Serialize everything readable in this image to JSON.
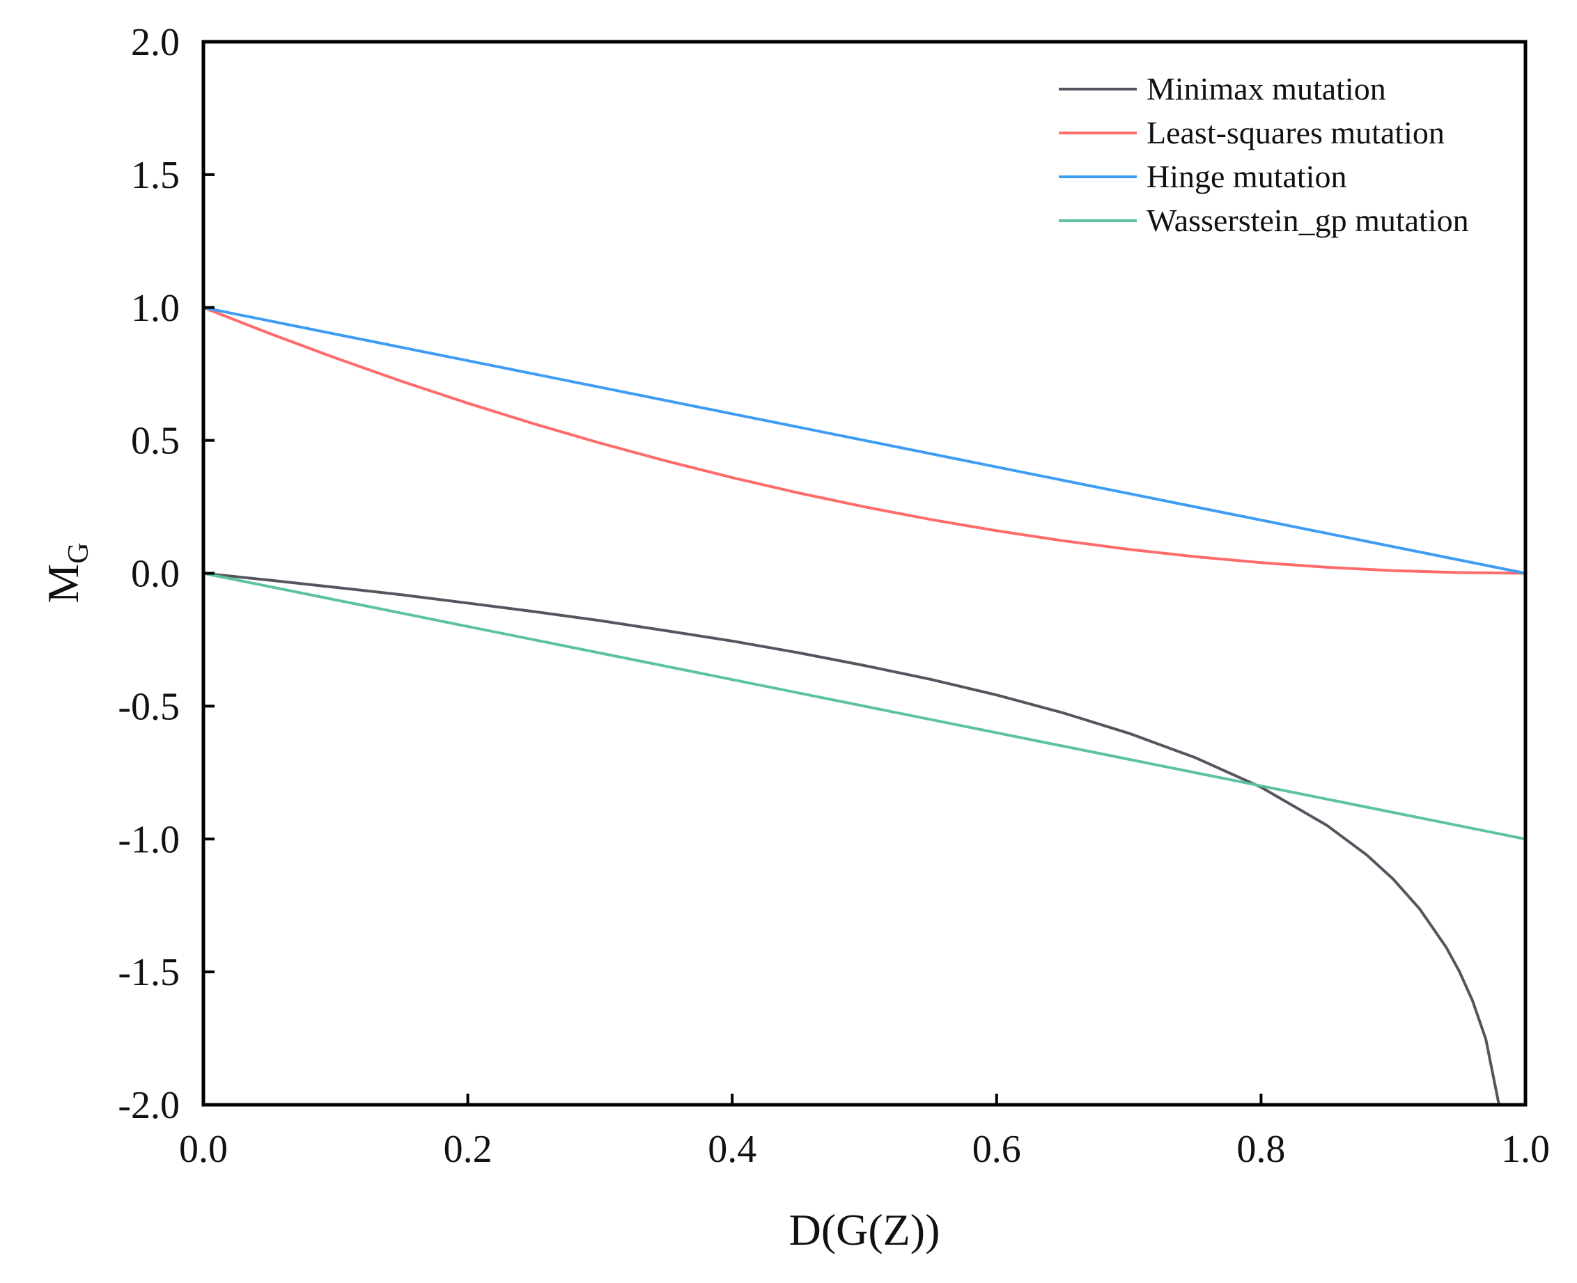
{
  "chart_data": {
    "type": "line",
    "title": "",
    "xlabel": "D(G(Z))",
    "ylabel": {
      "main": "M",
      "subscript": "G"
    },
    "xlim": [
      0.0,
      1.0
    ],
    "ylim": [
      -2.0,
      2.0
    ],
    "grid": false,
    "legend_position": "top-right",
    "x_ticks": [
      0.0,
      0.2,
      0.4,
      0.6,
      0.8,
      1.0
    ],
    "x_tick_labels": [
      "0.0",
      "0.2",
      "0.4",
      "0.6",
      "0.8",
      "1.0"
    ],
    "y_ticks": [
      2.0,
      1.5,
      1.0,
      0.5,
      0.0,
      -0.5,
      -1.0,
      -1.5,
      -2.0
    ],
    "y_tick_labels": [
      "2.0",
      "1.5",
      "1.0",
      "0.5",
      "0.0",
      "-0.5",
      "-1.0",
      "-1.5",
      "-2.0"
    ],
    "series": [
      {
        "name": "Minimax mutation",
        "color": "#55555f",
        "x": [
          0.0,
          0.05,
          0.1,
          0.15,
          0.2,
          0.25,
          0.3,
          0.35,
          0.4,
          0.45,
          0.5,
          0.55,
          0.6,
          0.65,
          0.7,
          0.75,
          0.8,
          0.85,
          0.88,
          0.9,
          0.92,
          0.94,
          0.95,
          0.96,
          0.97,
          0.98
        ],
        "values": [
          0.0,
          -0.026,
          -0.053,
          -0.081,
          -0.112,
          -0.144,
          -0.178,
          -0.216,
          -0.255,
          -0.299,
          -0.347,
          -0.399,
          -0.458,
          -0.525,
          -0.602,
          -0.693,
          -0.805,
          -0.949,
          -1.06,
          -1.151,
          -1.263,
          -1.407,
          -1.498,
          -1.609,
          -1.753,
          -2.0
        ]
      },
      {
        "name": "Least-squares mutation",
        "color": "#ff6b6b",
        "x": [
          0.0,
          0.05,
          0.1,
          0.15,
          0.2,
          0.25,
          0.3,
          0.35,
          0.4,
          0.45,
          0.5,
          0.55,
          0.6,
          0.65,
          0.7,
          0.75,
          0.8,
          0.85,
          0.9,
          0.95,
          1.0
        ],
        "values": [
          1.0,
          0.9025,
          0.81,
          0.7225,
          0.64,
          0.5625,
          0.49,
          0.4225,
          0.36,
          0.3025,
          0.25,
          0.2025,
          0.16,
          0.1225,
          0.09,
          0.0625,
          0.04,
          0.0225,
          0.01,
          0.0025,
          0.0
        ]
      },
      {
        "name": "Hinge mutation",
        "color": "#3d9df5",
        "x": [
          0.0,
          0.2,
          0.4,
          0.6,
          0.8,
          1.0
        ],
        "values": [
          1.0,
          0.8,
          0.6,
          0.4,
          0.2,
          0.0
        ]
      },
      {
        "name": "Wasserstein_gp mutation",
        "color": "#5cc2a0",
        "x": [
          0.0,
          0.2,
          0.4,
          0.6,
          0.8,
          1.0
        ],
        "values": [
          0.0,
          -0.2,
          -0.4,
          -0.6,
          -0.8,
          -1.0
        ]
      }
    ]
  }
}
